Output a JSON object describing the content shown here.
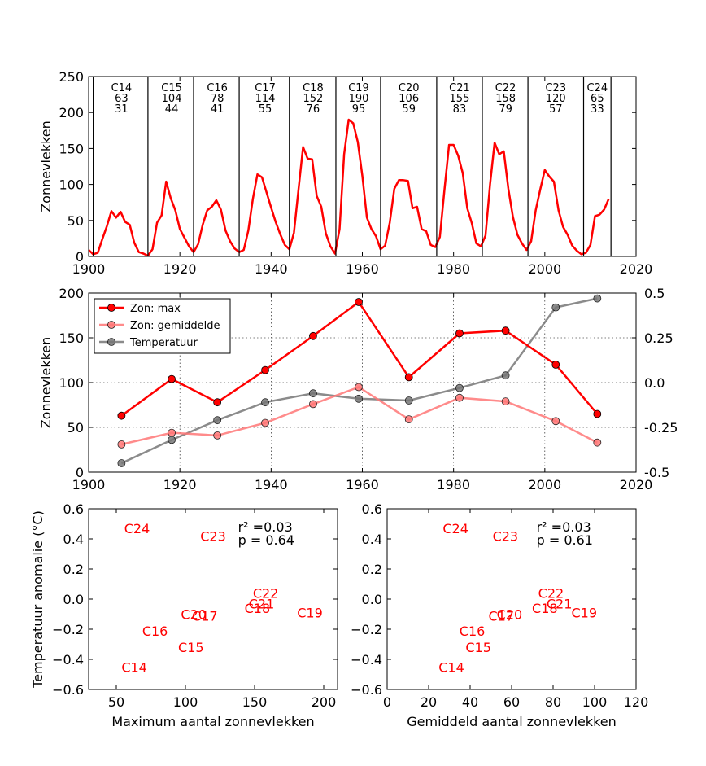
{
  "chart_data": [
    {
      "type": "line",
      "ylabel": "Zonnevlekken",
      "xlim": [
        1900,
        2020
      ],
      "ylim": [
        0,
        250
      ],
      "xticks": [
        1900,
        1920,
        1940,
        1960,
        1980,
        2000,
        2020
      ],
      "yticks": [
        0,
        50,
        100,
        150,
        200,
        250
      ],
      "series": [
        {
          "color": "#ff0000",
          "x": [
            1900,
            1901,
            1902,
            1903,
            1904,
            1905,
            1906,
            1907,
            1908,
            1909,
            1910,
            1911,
            1912,
            1913,
            1914,
            1915,
            1916,
            1917,
            1918,
            1919,
            1920,
            1921,
            1922,
            1923,
            1924,
            1925,
            1926,
            1927,
            1928,
            1929,
            1930,
            1931,
            1932,
            1933,
            1934,
            1935,
            1936,
            1937,
            1938,
            1939,
            1940,
            1941,
            1942,
            1943,
            1944,
            1945,
            1946,
            1947,
            1948,
            1949,
            1950,
            1951,
            1952,
            1953,
            1954,
            1955,
            1956,
            1957,
            1958,
            1959,
            1960,
            1961,
            1962,
            1963,
            1964,
            1965,
            1966,
            1967,
            1968,
            1969,
            1970,
            1971,
            1972,
            1973,
            1974,
            1975,
            1976,
            1977,
            1978,
            1979,
            1980,
            1981,
            1982,
            1983,
            1984,
            1985,
            1986,
            1987,
            1988,
            1989,
            1990,
            1991,
            1992,
            1993,
            1994,
            1995,
            1996,
            1997,
            1998,
            1999,
            2000,
            2001,
            2002,
            2003,
            2004,
            2005,
            2006,
            2007,
            2008,
            2009,
            2010,
            2011,
            2012,
            2013,
            2014
          ],
          "y": [
            9,
            3,
            5,
            24,
            42,
            63,
            54,
            62,
            48,
            44,
            19,
            6,
            4,
            1,
            10,
            47,
            57,
            104,
            81,
            64,
            38,
            26,
            14,
            6,
            17,
            44,
            64,
            69,
            78,
            65,
            36,
            21,
            11,
            6,
            9,
            36,
            80,
            114,
            110,
            89,
            68,
            48,
            31,
            16,
            10,
            33,
            93,
            152,
            136,
            135,
            84,
            69,
            32,
            14,
            4,
            38,
            142,
            190,
            185,
            159,
            112,
            54,
            38,
            28,
            10,
            15,
            47,
            94,
            106,
            106,
            105,
            67,
            69,
            38,
            35,
            16,
            13,
            27,
            93,
            155,
            155,
            140,
            116,
            67,
            46,
            18,
            14,
            29,
            100,
            158,
            142,
            146,
            94,
            55,
            30,
            18,
            9,
            21,
            64,
            93,
            120,
            111,
            104,
            64,
            41,
            30,
            15,
            8,
            3,
            5,
            16,
            56,
            58,
            65,
            80
          ]
        }
      ],
      "cycles": [
        {
          "name": "C14",
          "max": "63",
          "mean": "31",
          "center": 1907.2,
          "end": 1913.0
        },
        {
          "name": "C15",
          "max": "104",
          "mean": "44",
          "center": 1918.2,
          "end": 1923.0
        },
        {
          "name": "C16",
          "max": "78",
          "mean": "41",
          "center": 1928.2,
          "end": 1933.0
        },
        {
          "name": "C17",
          "max": "114",
          "mean": "55",
          "center": 1938.7,
          "end": 1944.0
        },
        {
          "name": "C18",
          "max": "152",
          "mean": "76",
          "center": 1949.2,
          "end": 1954.2
        },
        {
          "name": "C19",
          "max": "190",
          "mean": "95",
          "center": 1959.2,
          "end": 1964.0
        },
        {
          "name": "C20",
          "max": "106",
          "mean": "59",
          "center": 1970.2,
          "end": 1976.3
        },
        {
          "name": "C21",
          "max": "155",
          "mean": "83",
          "center": 1981.3,
          "end": 1986.3
        },
        {
          "name": "C22",
          "max": "158",
          "mean": "79",
          "center": 1991.4,
          "end": 1996.3
        },
        {
          "name": "C23",
          "max": "120",
          "mean": "57",
          "center": 2002.4,
          "end": 2008.5
        },
        {
          "name": "C24",
          "max": "65",
          "mean": "33",
          "center": 2011.5,
          "end": 2014.5
        }
      ],
      "first_boundary": 1901.0
    },
    {
      "type": "line",
      "ylabel": "Zonnevlekken",
      "xlim": [
        1900,
        2020
      ],
      "ylim": [
        0,
        200
      ],
      "y2lim": [
        -0.5,
        0.5
      ],
      "xticks": [
        1900,
        1920,
        1940,
        1960,
        1980,
        2000,
        2020
      ],
      "yticks": [
        0,
        50,
        100,
        150,
        200
      ],
      "y2ticks": [
        "0.5",
        "0.25",
        "0.0",
        "-0.25",
        "-0.5"
      ],
      "grid": true,
      "legend": "top-left",
      "x": [
        1907.2,
        1918.2,
        1928.2,
        1938.7,
        1949.2,
        1959.2,
        1970.2,
        1981.3,
        1991.4,
        2002.4,
        2011.5
      ],
      "series": [
        {
          "name": "Zon: max",
          "color": "#ff0000",
          "axis": "left",
          "values": [
            63,
            104,
            78,
            114,
            152,
            190,
            106,
            155,
            158,
            120,
            65
          ]
        },
        {
          "name": "Zon: gemiddelde",
          "color": "#ff7777",
          "axis": "left",
          "values": [
            31,
            44,
            41,
            55,
            76,
            95,
            59,
            83,
            79,
            57,
            33
          ]
        },
        {
          "name": "Temperatuur",
          "color": "#777777",
          "axis": "right",
          "values": [
            -0.45,
            -0.32,
            -0.21,
            -0.11,
            -0.06,
            -0.09,
            -0.1,
            -0.03,
            0.04,
            0.42,
            0.47
          ]
        }
      ]
    },
    {
      "type": "scatter",
      "xlabel": "Maximum aantal zonnevlekken",
      "ylabel": "Temperatuur anomalie (°C)",
      "xlim": [
        30,
        210
      ],
      "ylim": [
        -0.6,
        0.6
      ],
      "xticks": [
        50,
        100,
        150,
        200
      ],
      "yticks": [
        "0.6",
        "0.4",
        "0.2",
        "0.0",
        "−0.2",
        "−0.4",
        "−0.6"
      ],
      "r2": "r² =0.03",
      "p": "p = 0.64",
      "points": [
        {
          "label": "C14",
          "x": 63,
          "y": -0.45
        },
        {
          "label": "C15",
          "x": 104,
          "y": -0.32
        },
        {
          "label": "C16",
          "x": 78,
          "y": -0.21
        },
        {
          "label": "C17",
          "x": 114,
          "y": -0.11
        },
        {
          "label": "C18",
          "x": 152,
          "y": -0.06
        },
        {
          "label": "C19",
          "x": 190,
          "y": -0.09
        },
        {
          "label": "C20",
          "x": 106,
          "y": -0.1
        },
        {
          "label": "C21",
          "x": 155,
          "y": -0.03
        },
        {
          "label": "C22",
          "x": 158,
          "y": 0.04
        },
        {
          "label": "C23",
          "x": 120,
          "y": 0.42
        },
        {
          "label": "C24",
          "x": 65,
          "y": 0.47
        }
      ]
    },
    {
      "type": "scatter",
      "xlabel": "Gemiddeld aantal zonnevlekken",
      "ylabel": "",
      "xlim": [
        0,
        120
      ],
      "ylim": [
        -0.6,
        0.6
      ],
      "xticks": [
        0,
        20,
        40,
        60,
        80,
        100,
        120
      ],
      "yticks": [
        "0.6",
        "0.4",
        "0.2",
        "0.0",
        "−0.2",
        "−0.4",
        "−0.6"
      ],
      "r2": "r² =0.03",
      "p": "p = 0.61",
      "points": [
        {
          "label": "C14",
          "x": 31,
          "y": -0.45
        },
        {
          "label": "C15",
          "x": 44,
          "y": -0.32
        },
        {
          "label": "C16",
          "x": 41,
          "y": -0.21
        },
        {
          "label": "C17",
          "x": 55,
          "y": -0.11
        },
        {
          "label": "C18",
          "x": 76,
          "y": -0.06
        },
        {
          "label": "C19",
          "x": 95,
          "y": -0.09
        },
        {
          "label": "C20",
          "x": 59,
          "y": -0.1
        },
        {
          "label": "C21",
          "x": 83,
          "y": -0.03
        },
        {
          "label": "C22",
          "x": 79,
          "y": 0.04
        },
        {
          "label": "C23",
          "x": 57,
          "y": 0.42
        },
        {
          "label": "C24",
          "x": 33,
          "y": 0.47
        }
      ]
    }
  ]
}
